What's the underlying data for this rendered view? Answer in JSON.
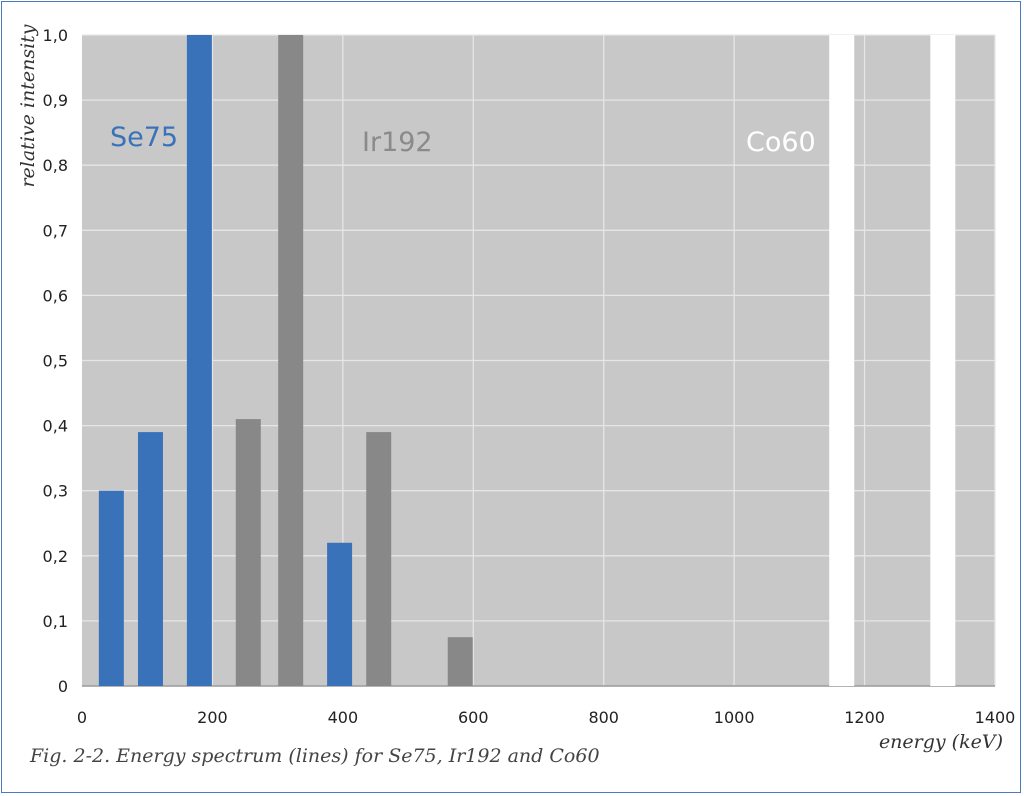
{
  "chart_data": {
    "type": "bar",
    "xlabel": "energy (keV)",
    "ylabel": "relative intensity",
    "xlim": [
      0,
      1400
    ],
    "ylim": [
      0,
      1.0
    ],
    "x_ticks": [
      0,
      200,
      400,
      600,
      800,
      1000,
      1200,
      1400
    ],
    "y_ticks": [
      0,
      0.1,
      0.2,
      0.3,
      0.4,
      0.5,
      0.6,
      0.7,
      0.8,
      0.9,
      1.0
    ],
    "x_tick_labels": [
      "0",
      "200",
      "400",
      "600",
      "800",
      "1000",
      "1200",
      "1400"
    ],
    "y_tick_labels": [
      "0",
      "0,1",
      "0,2",
      "0,3",
      "0,4",
      "0,5",
      "0,6",
      "0,7",
      "0,8",
      "0,9",
      "1,0"
    ],
    "grid": true,
    "series": [
      {
        "name": "Se75",
        "color": "#3a72ba",
        "label_color": "#3a72ba",
        "x": [
          45,
          105,
          180,
          395
        ],
        "y": [
          0.3,
          0.39,
          1.0,
          0.22
        ]
      },
      {
        "name": "Ir192",
        "color": "#888888",
        "label_color": "#8a8a8a",
        "x": [
          255,
          320,
          455,
          580
        ],
        "y": [
          0.41,
          1.0,
          0.39,
          0.075
        ]
      },
      {
        "name": "Co60",
        "color": "#ffffff",
        "label_color": "#ffffff",
        "x": [
          1165,
          1320
        ],
        "y": [
          1.0,
          1.0
        ]
      }
    ],
    "plot_background": "#c8c8c8",
    "grid_color": "#e6e6e6"
  },
  "caption": "Fig. 2-2. Energy spectrum (lines) for Se75, Ir192 and Co60"
}
